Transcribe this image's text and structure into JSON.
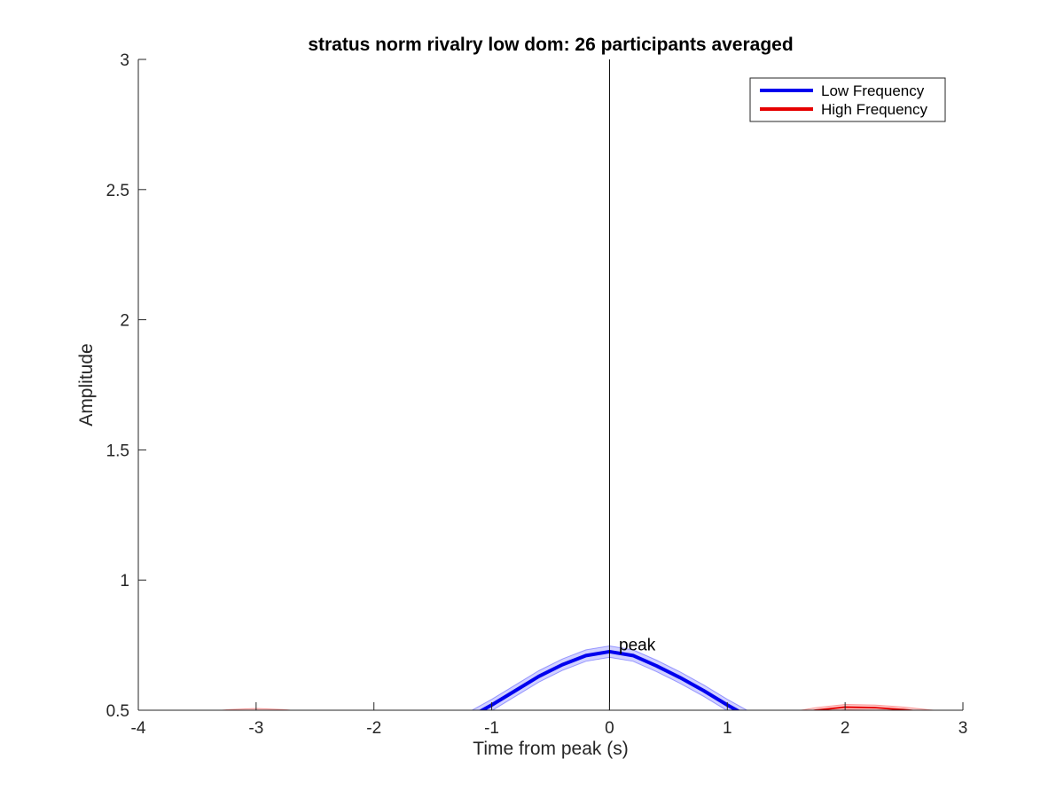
{
  "chart_data": {
    "type": "line",
    "title": "stratus norm rivalry low dom: 26 participants averaged",
    "xlabel": "Time from peak (s)",
    "ylabel": "Amplitude",
    "xlim": [
      -4,
      3
    ],
    "ylim": [
      0.5,
      3
    ],
    "xticks": [
      "-4",
      "-3",
      "-2",
      "-1",
      "0",
      "1",
      "2",
      "3"
    ],
    "yticks": [
      "0.5",
      "1",
      "1.5",
      "2",
      "2.5",
      "3"
    ],
    "grid": false,
    "legend_position": "top-right",
    "series": [
      {
        "name": "Low Frequency",
        "color": "#0000ee",
        "band_color": "#0000ff",
        "x": [
          -1.2,
          -1.0,
          -0.8,
          -0.6,
          -0.4,
          -0.2,
          0.0,
          0.2,
          0.4,
          0.6,
          0.8,
          1.0,
          1.2
        ],
        "y": [
          0.47,
          0.52,
          0.575,
          0.63,
          0.675,
          0.71,
          0.725,
          0.71,
          0.67,
          0.625,
          0.575,
          0.52,
          0.47
        ],
        "band": 0.022
      },
      {
        "name": "High Frequency",
        "color": "#e60000",
        "band_color": "#ff0000",
        "x": [
          -3.5,
          -3.25,
          -3.0,
          -2.75,
          -2.5,
          1.5,
          1.75,
          2.0,
          2.25,
          2.5,
          2.75,
          3.0
        ],
        "y": [
          0.48,
          0.492,
          0.497,
          0.492,
          0.48,
          0.48,
          0.5,
          0.512,
          0.51,
          0.502,
          0.49,
          0.47
        ],
        "band": 0.01
      }
    ],
    "vline_x": 0,
    "annotation": {
      "text": "peak",
      "x": 0.08,
      "y": 0.73
    }
  }
}
